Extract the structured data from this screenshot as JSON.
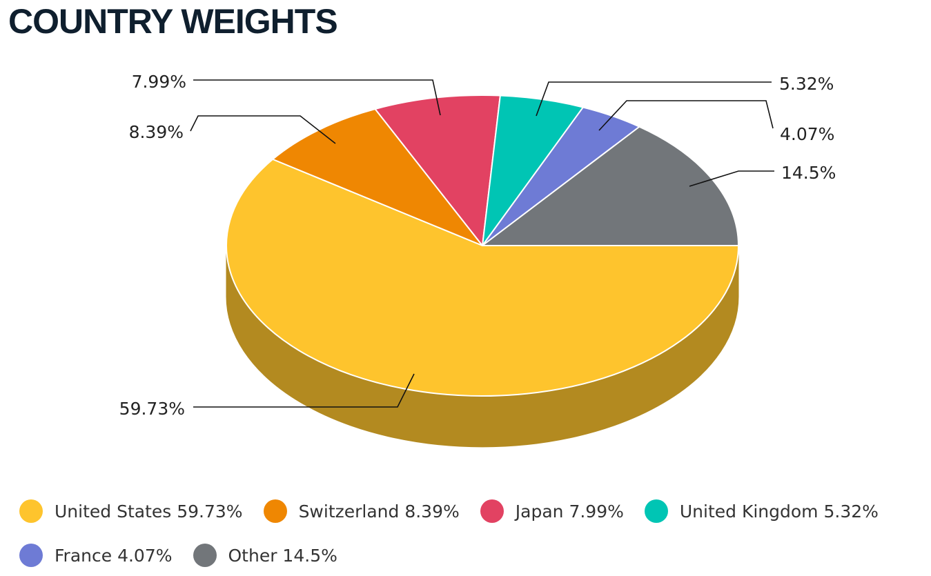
{
  "title": "COUNTRY WEIGHTS",
  "chart_data": {
    "type": "pie",
    "title": "COUNTRY WEIGHTS",
    "legend_position": "bottom",
    "slices": [
      {
        "name": "United States",
        "value": 59.73,
        "label": "59.73%",
        "legend": "United States 59.73%",
        "color": "#fec42d",
        "side_color": "#b38a20"
      },
      {
        "name": "Switzerland",
        "value": 8.39,
        "label": "8.39%",
        "legend": "Switzerland 8.39%",
        "color": "#ef8702",
        "side_color": "#a95f01"
      },
      {
        "name": "Japan",
        "value": 7.99,
        "label": "7.99%",
        "legend": "Japan 7.99%",
        "color": "#e24262",
        "side_color": "#a02f45"
      },
      {
        "name": "United Kingdom",
        "value": 5.32,
        "label": "5.32%",
        "legend": "United Kingdom 5.32%",
        "color": "#00c5b4",
        "side_color": "#008b80"
      },
      {
        "name": "France",
        "value": 4.07,
        "label": "4.07%",
        "legend": "France 4.07%",
        "color": "#6e7bd5",
        "side_color": "#4e5797"
      },
      {
        "name": "Other",
        "value": 14.5,
        "label": "14.5%",
        "legend": "Other 14.5%",
        "color": "#72767a",
        "side_color": "#515457"
      }
    ]
  }
}
